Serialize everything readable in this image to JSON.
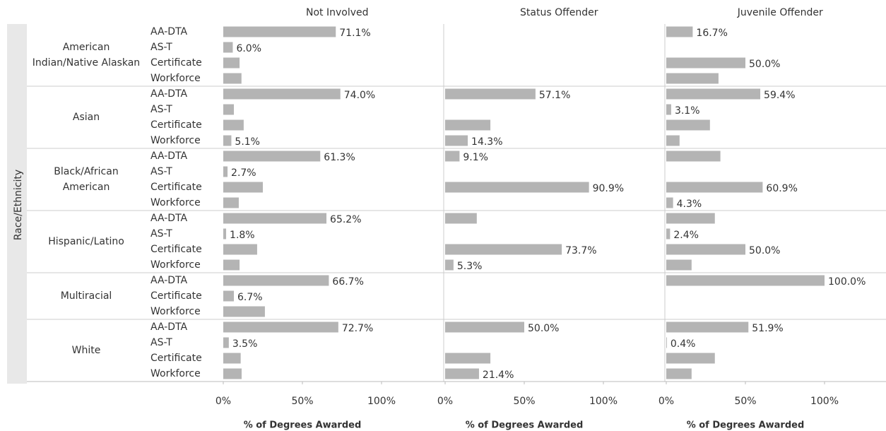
{
  "chart_data": {
    "type": "bar",
    "panels": [
      "Not Involved",
      "Status Offender",
      "Juvenile Offender"
    ],
    "ylabel": "Race/Ethnicity",
    "xlabel": "% of Degrees Awarded",
    "xlim": [
      0,
      100
    ],
    "xticks": [
      {
        "value": 0,
        "label": "0%"
      },
      {
        "value": 50,
        "label": "50%"
      },
      {
        "value": 100,
        "label": "100%"
      }
    ],
    "color": "#b4b4b4",
    "groups": [
      {
        "name": "American Indian/Native Alaskan",
        "categories": [
          "AA-DTA",
          "AS-T",
          "Certificate",
          "Workforce"
        ],
        "values": [
          [
            71.1,
            6.0,
            10.3,
            11.5
          ],
          [
            null,
            null,
            null,
            null
          ],
          [
            16.7,
            null,
            50.0,
            33.0
          ]
        ],
        "value_labels": [
          [
            "71.1%",
            "6.0%",
            null,
            null
          ],
          [
            null,
            null,
            null,
            null
          ],
          [
            "16.7%",
            null,
            "50.0%",
            null
          ]
        ]
      },
      {
        "name": "Asian",
        "categories": [
          "AA-DTA",
          "AS-T",
          "Certificate",
          "Workforce"
        ],
        "values": [
          [
            74.0,
            6.7,
            12.9,
            5.1
          ],
          [
            57.1,
            null,
            28.6,
            14.3
          ],
          [
            59.4,
            3.1,
            27.6,
            8.4
          ]
        ],
        "value_labels": [
          [
            "74.0%",
            null,
            null,
            "5.1%"
          ],
          [
            "57.1%",
            null,
            null,
            "14.3%"
          ],
          [
            "59.4%",
            "3.1%",
            null,
            null
          ]
        ]
      },
      {
        "name": "Black/African American",
        "categories": [
          "AA-DTA",
          "AS-T",
          "Certificate",
          "Workforce"
        ],
        "values": [
          [
            61.3,
            2.7,
            25.0,
            9.8
          ],
          [
            9.1,
            null,
            90.9,
            null
          ],
          [
            34.2,
            null,
            60.9,
            4.3
          ]
        ],
        "value_labels": [
          [
            "61.3%",
            "2.7%",
            null,
            null
          ],
          [
            "9.1%",
            null,
            "90.9%",
            null
          ],
          [
            null,
            null,
            "60.9%",
            "4.3%"
          ]
        ]
      },
      {
        "name": "Hispanic/Latino",
        "categories": [
          "AA-DTA",
          "AS-T",
          "Certificate",
          "Workforce"
        ],
        "values": [
          [
            65.2,
            1.8,
            21.4,
            10.3
          ],
          [
            20.0,
            null,
            73.7,
            5.3
          ],
          [
            30.7,
            2.4,
            50.0,
            16.0
          ]
        ],
        "value_labels": [
          [
            "65.2%",
            "1.8%",
            null,
            null
          ],
          [
            null,
            null,
            "73.7%",
            "5.3%"
          ],
          [
            null,
            "2.4%",
            "50.0%",
            null
          ]
        ]
      },
      {
        "name": "Multiracial",
        "categories": [
          "AA-DTA",
          "Certificate",
          "Workforce"
        ],
        "values": [
          [
            66.7,
            6.7,
            26.3
          ],
          [
            null,
            null,
            null
          ],
          [
            100.0,
            null,
            null
          ]
        ],
        "value_labels": [
          [
            "66.7%",
            "6.7%",
            null
          ],
          [
            null,
            null,
            null
          ],
          [
            "100.0%",
            null,
            null
          ]
        ]
      },
      {
        "name": "White",
        "categories": [
          "AA-DTA",
          "AS-T",
          "Certificate",
          "Workforce"
        ],
        "values": [
          [
            72.7,
            3.5,
            11.0,
            11.6
          ],
          [
            50.0,
            null,
            28.6,
            21.4
          ],
          [
            51.9,
            0.4,
            30.7,
            16.0
          ]
        ],
        "value_labels": [
          [
            "72.7%",
            "3.5%",
            null,
            null
          ],
          [
            "50.0%",
            null,
            null,
            "21.4%"
          ],
          [
            "51.9%",
            "0.4%",
            null,
            null
          ]
        ]
      }
    ]
  }
}
